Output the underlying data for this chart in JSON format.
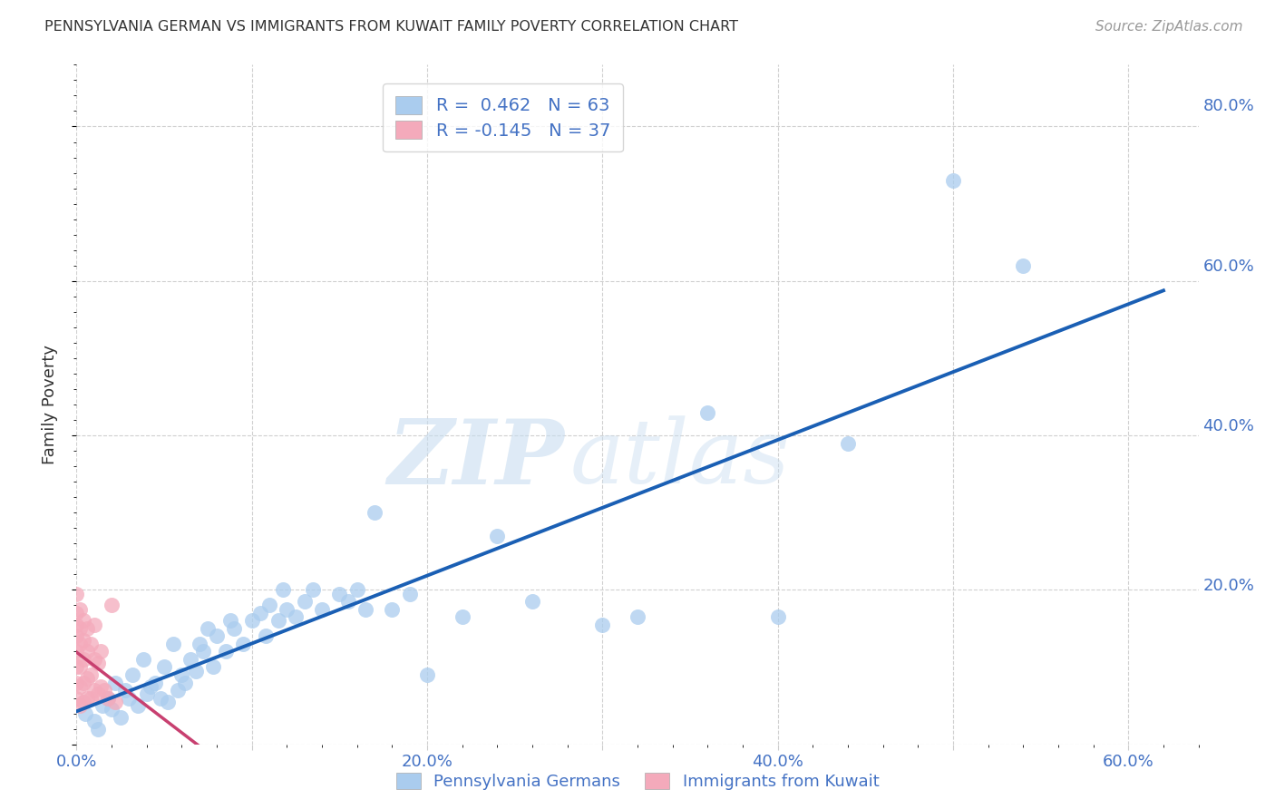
{
  "title": "PENNSYLVANIA GERMAN VS IMMIGRANTS FROM KUWAIT FAMILY POVERTY CORRELATION CHART",
  "source": "Source: ZipAtlas.com",
  "ylabel": "Family Poverty",
  "xlim": [
    0.0,
    0.62
  ],
  "ylim": [
    0.0,
    0.85
  ],
  "blue_R": 0.462,
  "blue_N": 63,
  "pink_R": -0.145,
  "pink_N": 37,
  "legend_label_blue": "Pennsylvania Germans",
  "legend_label_pink": "Immigrants from Kuwait",
  "blue_color": "#aaccee",
  "blue_line_color": "#1a5fb4",
  "pink_color": "#f4aabb",
  "pink_line_color": "#c84070",
  "blue_scatter_x": [
    0.005,
    0.01,
    0.012,
    0.015,
    0.018,
    0.02,
    0.022,
    0.025,
    0.028,
    0.03,
    0.032,
    0.035,
    0.038,
    0.04,
    0.042,
    0.045,
    0.048,
    0.05,
    0.052,
    0.055,
    0.058,
    0.06,
    0.062,
    0.065,
    0.068,
    0.07,
    0.072,
    0.075,
    0.078,
    0.08,
    0.085,
    0.088,
    0.09,
    0.095,
    0.1,
    0.105,
    0.108,
    0.11,
    0.115,
    0.118,
    0.12,
    0.125,
    0.13,
    0.135,
    0.14,
    0.15,
    0.155,
    0.16,
    0.165,
    0.17,
    0.18,
    0.19,
    0.2,
    0.22,
    0.24,
    0.26,
    0.3,
    0.32,
    0.36,
    0.4,
    0.44,
    0.5,
    0.54
  ],
  "blue_scatter_y": [
    0.04,
    0.03,
    0.02,
    0.05,
    0.06,
    0.045,
    0.08,
    0.035,
    0.07,
    0.06,
    0.09,
    0.05,
    0.11,
    0.065,
    0.075,
    0.08,
    0.06,
    0.1,
    0.055,
    0.13,
    0.07,
    0.09,
    0.08,
    0.11,
    0.095,
    0.13,
    0.12,
    0.15,
    0.1,
    0.14,
    0.12,
    0.16,
    0.15,
    0.13,
    0.16,
    0.17,
    0.14,
    0.18,
    0.16,
    0.2,
    0.175,
    0.165,
    0.185,
    0.2,
    0.175,
    0.195,
    0.185,
    0.2,
    0.175,
    0.3,
    0.175,
    0.195,
    0.09,
    0.165,
    0.27,
    0.185,
    0.155,
    0.165,
    0.43,
    0.165,
    0.39,
    0.73,
    0.62
  ],
  "pink_scatter_x": [
    0.0,
    0.0,
    0.0,
    0.0,
    0.0,
    0.0,
    0.0,
    0.0,
    0.002,
    0.002,
    0.002,
    0.002,
    0.002,
    0.002,
    0.004,
    0.004,
    0.004,
    0.004,
    0.004,
    0.006,
    0.006,
    0.006,
    0.006,
    0.008,
    0.008,
    0.008,
    0.01,
    0.01,
    0.01,
    0.012,
    0.012,
    0.014,
    0.014,
    0.016,
    0.018,
    0.02,
    0.022
  ],
  "pink_scatter_y": [
    0.06,
    0.08,
    0.1,
    0.12,
    0.14,
    0.155,
    0.17,
    0.195,
    0.05,
    0.075,
    0.1,
    0.13,
    0.15,
    0.175,
    0.055,
    0.08,
    0.11,
    0.135,
    0.16,
    0.06,
    0.085,
    0.12,
    0.15,
    0.06,
    0.09,
    0.13,
    0.07,
    0.11,
    0.155,
    0.065,
    0.105,
    0.075,
    0.12,
    0.07,
    0.06,
    0.18,
    0.055
  ],
  "watermark_zip": "ZIP",
  "watermark_atlas": "atlas",
  "background_color": "#ffffff",
  "grid_color": "#d0d0d0"
}
